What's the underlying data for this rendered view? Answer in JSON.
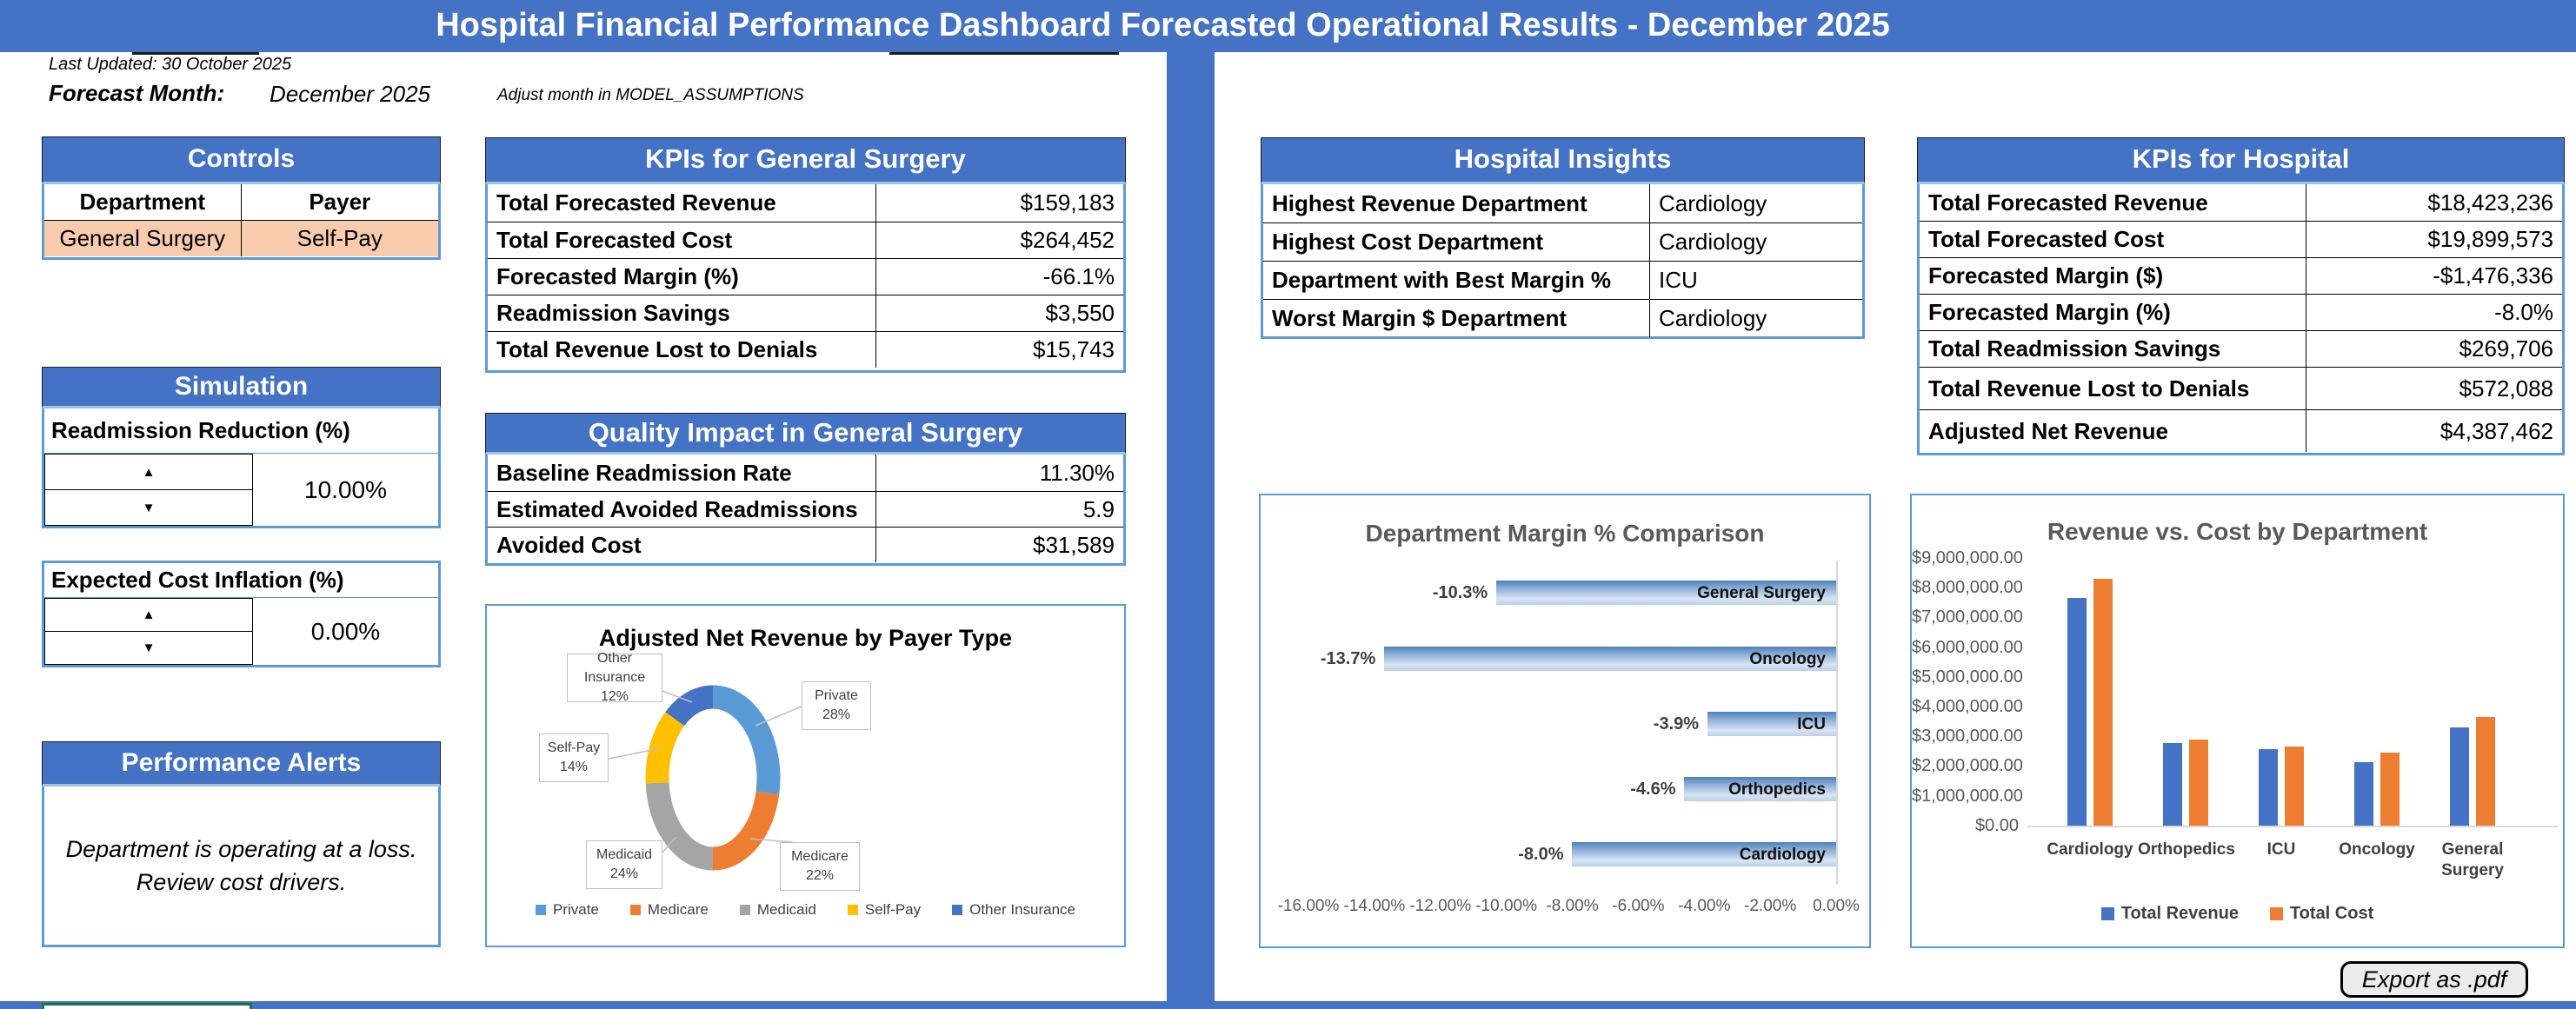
{
  "banner": {
    "title": "Hospital Financial Performance Dashboard Forecasted Operational Results - December 2025"
  },
  "meta": {
    "last_updated": "Last Updated: 30 October 2025",
    "forecast_month_label": "Forecast Month:",
    "forecast_month_value": "December 2025",
    "adjust_note": "Adjust month in MODEL_ASSUMPTIONS"
  },
  "colors": {
    "banner_blue": "#4472C4",
    "box_border_blue": "#5B9BD5",
    "selected_cell_peach": "#F8CBAD",
    "partial_box_green": "#217346",
    "chart_title_gray": "#595959"
  },
  "controls": {
    "title": "Controls",
    "columns": [
      "Department",
      "Payer"
    ],
    "values": [
      "General Surgery",
      "Self-Pay"
    ]
  },
  "simulation": {
    "title": "Simulation",
    "readmission_label": "Readmission Reduction (%)",
    "readmission_value": "10.00%",
    "inflation_label": "Expected Cost Inflation (%)",
    "inflation_value": "0.00%"
  },
  "alerts": {
    "title": "Performance Alerts",
    "message_line1": "Department is operating at a loss.",
    "message_line2": "Review cost drivers."
  },
  "kpis_general_surgery": {
    "title": "KPIs for General Surgery",
    "rows": [
      {
        "label": "Total Forecasted Revenue",
        "value": "$159,183"
      },
      {
        "label": "Total Forecasted Cost",
        "value": "$264,452"
      },
      {
        "label": "Forecasted Margin (%)",
        "value": "-66.1%"
      },
      {
        "label": "Readmission Savings",
        "value": "$3,550"
      },
      {
        "label": "Total Revenue Lost to Denials",
        "value": "$15,743"
      }
    ]
  },
  "quality_impact": {
    "title": "Quality Impact in General Surgery",
    "rows": [
      {
        "label": "Baseline Readmission Rate",
        "value": "11.30%"
      },
      {
        "label": "Estimated Avoided Readmissions",
        "value": "5.9"
      },
      {
        "label": "Avoided Cost",
        "value": "$31,589"
      }
    ]
  },
  "hospital_insights": {
    "title": "Hospital Insights",
    "rows": [
      {
        "label": "Highest Revenue Department",
        "value": "Cardiology"
      },
      {
        "label": "Highest Cost Department",
        "value": "Cardiology"
      },
      {
        "label": "Department with Best Margin %",
        "value": "ICU"
      },
      {
        "label": "Worst Margin $ Department",
        "value": "Cardiology"
      }
    ]
  },
  "kpis_hospital": {
    "title": "KPIs for Hospital",
    "rows": [
      {
        "label": "Total Forecasted Revenue",
        "value": "$18,423,236"
      },
      {
        "label": "Total Forecasted Cost",
        "value": "$19,899,573"
      },
      {
        "label": "Forecasted Margin ($)",
        "value": "-$1,476,336"
      },
      {
        "label": "Forecasted Margin (%)",
        "value": "-8.0%"
      },
      {
        "label": "Total Readmission Savings",
        "value": "$269,706"
      },
      {
        "label": "Total Revenue Lost to Denials",
        "value": "$572,088"
      },
      {
        "label": "Adjusted Net Revenue",
        "value": "$4,387,462"
      }
    ]
  },
  "export_button_label": "Export as .pdf",
  "chart_data": [
    {
      "id": "payer_donut",
      "type": "pie",
      "donut": true,
      "title": "Adjusted Net Revenue by Payer Type",
      "labels": [
        "Private",
        "Medicare",
        "Medicaid",
        "Self-Pay",
        "Other Insurance"
      ],
      "values": [
        28,
        22,
        24,
        14,
        12
      ],
      "value_labels": [
        "28%",
        "22%",
        "24%",
        "14%",
        "12%"
      ],
      "colors": [
        "#5B9BD5",
        "#ED7D31",
        "#A5A5A5",
        "#FFC000",
        "#4472C4"
      ],
      "legend_position": "bottom"
    },
    {
      "id": "margin_comparison",
      "type": "bar",
      "orientation": "horizontal",
      "title": "Department Margin % Comparison",
      "categories": [
        "General Surgery",
        "Oncology",
        "ICU",
        "Orthopedics",
        "Cardiology"
      ],
      "values": [
        -10.3,
        -13.7,
        -3.9,
        -4.6,
        -8.0
      ],
      "value_labels": [
        "-10.3%",
        "-13.7%",
        "-3.9%",
        "-4.6%",
        "-8.0%"
      ],
      "xlim": [
        -16,
        0
      ],
      "xticks": [
        "-16.00%",
        "-14.00%",
        "-12.00%",
        "-10.00%",
        "-8.00%",
        "-6.00%",
        "-4.00%",
        "-2.00%",
        "0.00%"
      ],
      "grid": false,
      "legend_position": "none"
    },
    {
      "id": "rev_vs_cost",
      "type": "bar",
      "orientation": "vertical",
      "title": "Revenue vs. Cost by Department",
      "categories": [
        "Cardiology",
        "Orthopedics",
        "ICU",
        "Oncology",
        "General Surgery"
      ],
      "series": [
        {
          "name": "Total Revenue",
          "color": "#4472C4",
          "values": [
            7650000,
            2780000,
            2580000,
            2130000,
            3300000
          ]
        },
        {
          "name": "Total Cost",
          "color": "#ED7D31",
          "values": [
            8300000,
            2900000,
            2660000,
            2450000,
            3650000
          ]
        }
      ],
      "ylim": [
        0,
        9000000
      ],
      "yticks": [
        "$9,000,000.00",
        "$8,000,000.00",
        "$7,000,000.00",
        "$6,000,000.00",
        "$5,000,000.00",
        "$4,000,000.00",
        "$3,000,000.00",
        "$2,000,000.00",
        "$1,000,000.00",
        "$0.00"
      ],
      "grid": false,
      "legend_position": "bottom"
    }
  ]
}
